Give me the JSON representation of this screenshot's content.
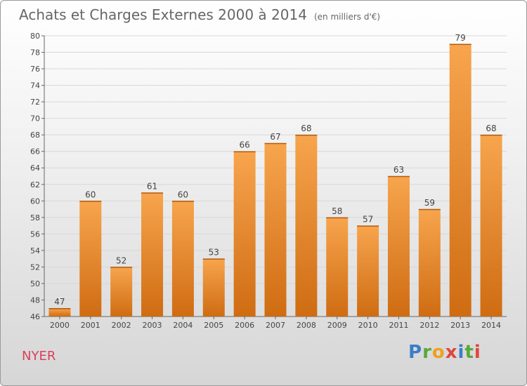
{
  "title": "Achats et Charges Externes 2000 à 2014",
  "unit": "(en milliers d'€)",
  "commune": "NYER",
  "logo": {
    "letters": [
      {
        "ch": "P",
        "color": "#3a7dc9"
      },
      {
        "ch": "r",
        "color": "#5aa83c"
      },
      {
        "ch": "o",
        "color": "#f0a020"
      },
      {
        "ch": "x",
        "color": "#e0463c"
      },
      {
        "ch": "i",
        "color": "#3a7dc9"
      },
      {
        "ch": "t",
        "color": "#5aa83c"
      },
      {
        "ch": "i",
        "color": "#e0463c"
      }
    ]
  },
  "colors": {
    "bar_top": "#f7a54e",
    "bar_bottom": "#cf6c12",
    "grid": "#d8d8d8"
  },
  "chart_data": {
    "type": "bar",
    "categories": [
      "2000",
      "2001",
      "2002",
      "2003",
      "2004",
      "2005",
      "2006",
      "2007",
      "2008",
      "2009",
      "2010",
      "2011",
      "2012",
      "2013",
      "2014"
    ],
    "values": [
      47,
      60,
      52,
      61,
      60,
      53,
      66,
      67,
      68,
      58,
      57,
      63,
      59,
      79,
      68
    ],
    "ylim": [
      46,
      80
    ],
    "yticks": [
      46,
      48,
      50,
      52,
      54,
      56,
      58,
      60,
      62,
      64,
      66,
      68,
      70,
      72,
      74,
      76,
      78,
      80
    ],
    "grid": true
  }
}
